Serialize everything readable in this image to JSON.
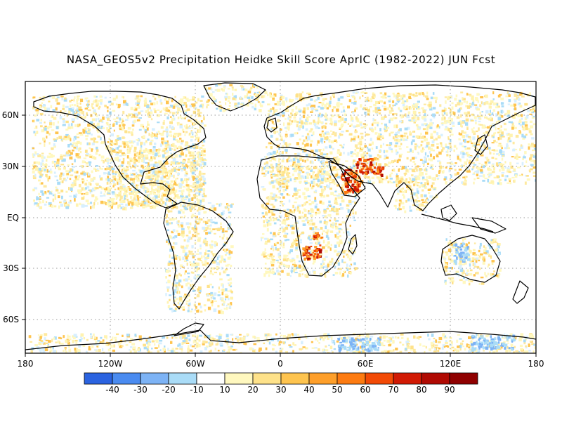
{
  "title": "NASA_GEOS5v2 Precipitation Heidke Skill Score AprIC (1982-2022) JUN Fcst",
  "map": {
    "lon_ticks": [
      "180",
      "120W",
      "60W",
      "0",
      "60E",
      "120E",
      "180"
    ],
    "lat_ticks": [
      "60N",
      "30N",
      "EQ",
      "30S",
      "60S"
    ],
    "grid": "dotted"
  },
  "colorbar": {
    "ticks": [
      "-40",
      "-30",
      "-20",
      "-10",
      "10",
      "20",
      "30",
      "40",
      "50",
      "60",
      "70",
      "80",
      "90"
    ],
    "colors": [
      "#2b63e0",
      "#4a8bf0",
      "#7db3f5",
      "#aadcf7",
      "#ffffff",
      "#fff8bf",
      "#fee28a",
      "#fec44f",
      "#fe9f2a",
      "#fd7b11",
      "#f24a06",
      "#d11a04",
      "#b00a03",
      "#8f0000"
    ]
  }
}
